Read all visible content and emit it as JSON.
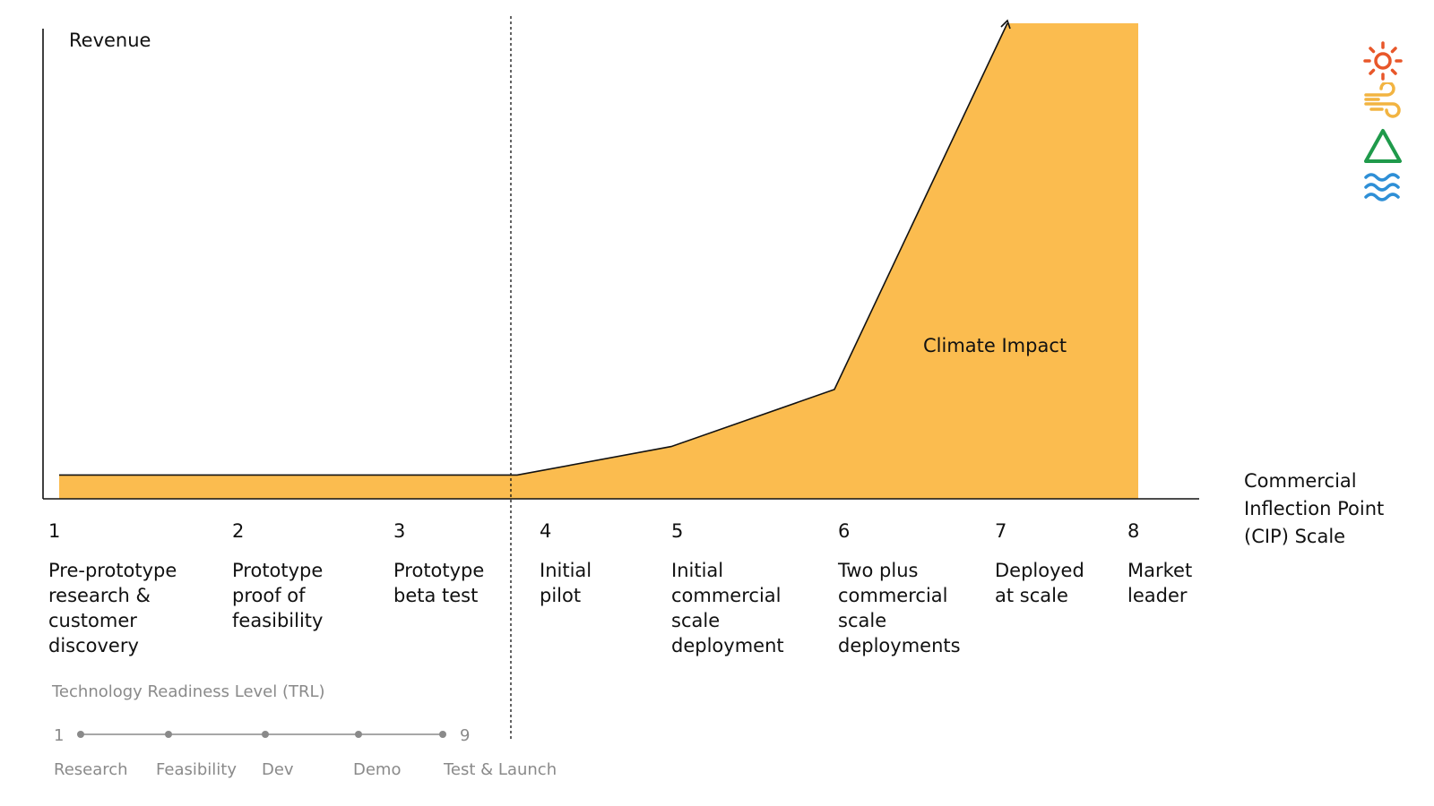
{
  "colors": {
    "area_fill": "#FBBC4F",
    "axis": "#111111",
    "gray_text": "#8a8a8a",
    "sun_icon": "#E8572A",
    "wind_icon": "#F2B441",
    "triangle_icon": "#1F9A4B",
    "water_icon": "#2E8FD6"
  },
  "chart_data": {
    "type": "area",
    "ylabel": "Revenue",
    "xlabel": "Commercial Inflection Point (CIP) Scale",
    "annotation": "Climate Impact",
    "grid": false,
    "divider_between": [
      3,
      4
    ],
    "categories": [
      {
        "num": "1",
        "label": "Pre-prototype\nresearch &\ncustomer\ndiscovery"
      },
      {
        "num": "2",
        "label": "Prototype\nproof of\nfeasibility"
      },
      {
        "num": "3",
        "label": "Prototype\nbeta test"
      },
      {
        "num": "4",
        "label": "Initial\npilot"
      },
      {
        "num": "5",
        "label": "Initial\ncommercial\nscale\ndeployment"
      },
      {
        "num": "6",
        "label": "Two plus\ncommercial\nscale\ndeployments"
      },
      {
        "num": "7",
        "label": "Deployed\nat scale"
      },
      {
        "num": "8",
        "label": "Market\nleader"
      }
    ],
    "series": [
      {
        "values": [
          0.05,
          0.05,
          0.05,
          0.05,
          0.11,
          0.23,
          1.0,
          1.0
        ],
        "x_points": [
          1,
          2,
          3,
          4,
          5,
          6,
          7,
          8
        ]
      }
    ],
    "ylim": [
      0,
      1
    ]
  },
  "trl": {
    "title": "Technology Readiness Level (TRL)",
    "min": "1",
    "max": "9",
    "dot_count": 5,
    "phases": [
      "Research",
      "Feasibility",
      "Dev",
      "Demo",
      "Test & Launch"
    ]
  },
  "icons": [
    "sun-icon",
    "wind-icon",
    "triangle-icon",
    "water-waves-icon"
  ]
}
